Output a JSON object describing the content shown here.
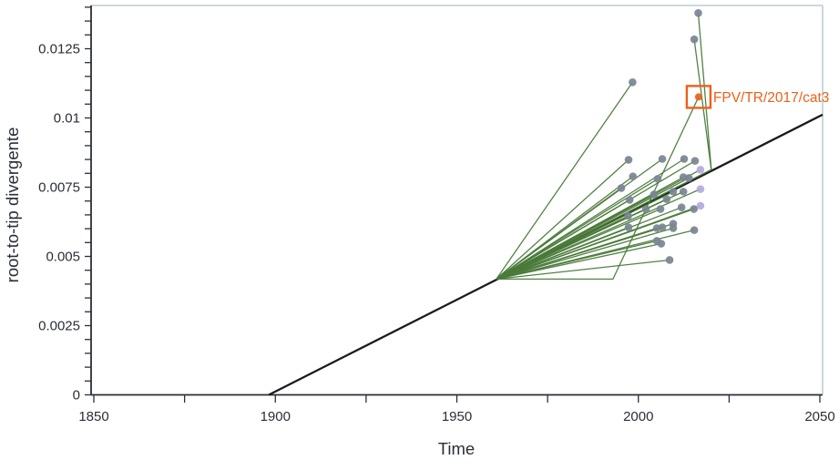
{
  "chart_data": {
    "type": "scatter",
    "title": "",
    "xlabel": "Time",
    "ylabel": "root-to-tip divergente",
    "legend": "none",
    "grid": false,
    "x_axis": {
      "range": [
        1850,
        2050
      ],
      "major_ticks": [
        1850,
        1900,
        1950,
        2000,
        2050
      ],
      "major_labels": [
        "1850",
        "1900",
        "1950",
        "2000",
        "2050"
      ],
      "minor_step": 25
    },
    "y_axis": {
      "range": [
        0,
        0.014
      ],
      "major_ticks": [
        0,
        0.0025,
        0.005,
        0.0075,
        0.01,
        0.0125
      ],
      "major_labels": [
        "0",
        "0.0025",
        "0.005",
        "0.0075",
        "0.01",
        "0.0125"
      ],
      "minor_step": 0.0005
    },
    "regression_line": {
      "points": [
        [
          1898.2,
          0
        ],
        [
          2050.75,
          0.01012
        ]
      ],
      "x_intercept_year": 1898.2,
      "rate_per_year": 6.63e-05
    },
    "root": [
      1960.9,
      0.00418
    ],
    "tips": [
      {
        "t": 2016.5,
        "d": 0.01379,
        "group": "gray",
        "via": [
          [
            2020.1,
            0.00813
          ]
        ]
      },
      {
        "t": 2015.4,
        "d": 0.01284,
        "group": "gray",
        "via": [
          [
            2020.1,
            0.00813
          ]
        ]
      },
      {
        "t": 1998.4,
        "d": 0.01129,
        "group": "gray"
      },
      {
        "t": 1997.3,
        "d": 0.00849,
        "group": "gray"
      },
      {
        "t": 2006.6,
        "d": 0.00852,
        "group": "gray"
      },
      {
        "t": 2012.6,
        "d": 0.00852,
        "group": "gray"
      },
      {
        "t": 2015.6,
        "d": 0.00845,
        "group": "gray"
      },
      {
        "t": 1998.5,
        "d": 0.00789,
        "group": "gray"
      },
      {
        "t": 2005.3,
        "d": 0.0078,
        "group": "gray"
      },
      {
        "t": 2012.4,
        "d": 0.00786,
        "group": "gray"
      },
      {
        "t": 2013.9,
        "d": 0.00783,
        "group": "gray"
      },
      {
        "t": 1995.3,
        "d": 0.00747,
        "group": "gray"
      },
      {
        "t": 2009.6,
        "d": 0.00734,
        "group": "gray"
      },
      {
        "t": 2012.4,
        "d": 0.00734,
        "group": "gray"
      },
      {
        "t": 1997.6,
        "d": 0.00704,
        "group": "gray"
      },
      {
        "t": 2004.3,
        "d": 0.00724,
        "group": "gray"
      },
      {
        "t": 2007.8,
        "d": 0.00707,
        "group": "gray"
      },
      {
        "t": 2002.1,
        "d": 0.00671,
        "group": "gray"
      },
      {
        "t": 2006.1,
        "d": 0.00671,
        "group": "gray"
      },
      {
        "t": 2011.9,
        "d": 0.00677,
        "group": "gray"
      },
      {
        "t": 2015.3,
        "d": 0.00671,
        "group": "gray"
      },
      {
        "t": 1997.2,
        "d": 0.00646,
        "group": "gray"
      },
      {
        "t": 1997.3,
        "d": 0.00605,
        "group": "gray"
      },
      {
        "t": 2005.1,
        "d": 0.00602,
        "group": "gray"
      },
      {
        "t": 2006.6,
        "d": 0.00605,
        "group": "gray"
      },
      {
        "t": 2009.6,
        "d": 0.00618,
        "group": "gray"
      },
      {
        "t": 2009.6,
        "d": 0.00602,
        "group": "gray"
      },
      {
        "t": 2015.4,
        "d": 0.00595,
        "group": "gray"
      },
      {
        "t": 2005.1,
        "d": 0.00556,
        "group": "gray"
      },
      {
        "t": 2006.3,
        "d": 0.00546,
        "group": "gray"
      },
      {
        "t": 2008.6,
        "d": 0.00487,
        "group": "gray"
      },
      {
        "t": 2017.1,
        "d": 0.00813,
        "group": "purple"
      },
      {
        "t": 2017.1,
        "d": 0.00743,
        "group": "purple"
      },
      {
        "t": 2017.1,
        "d": 0.00683,
        "group": "purple"
      },
      {
        "t": 2016.6,
        "d": 0.01076,
        "group": "highlight",
        "label": "FPV/TR/2017/cat3",
        "via": [
          [
            1993.0,
            0.00418
          ]
        ]
      }
    ],
    "colors": {
      "branch": "#4a7a3a",
      "gray": "#7a8592",
      "purple": "#b5abde",
      "highlight": "#eb611a",
      "regression": "#1b1b1b",
      "axis": "#2a2e38",
      "border": "#b9cbd4"
    }
  }
}
